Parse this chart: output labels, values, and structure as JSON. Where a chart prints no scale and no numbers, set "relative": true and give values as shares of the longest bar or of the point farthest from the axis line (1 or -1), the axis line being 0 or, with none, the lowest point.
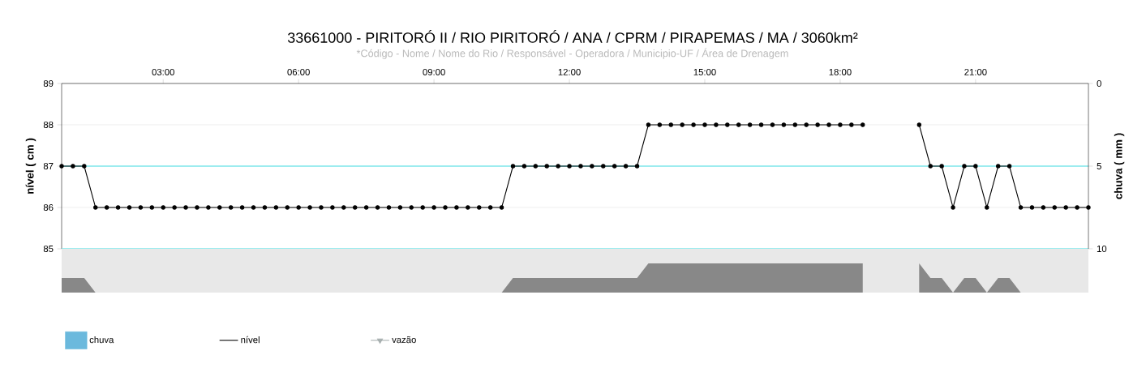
{
  "chart_data": [
    {
      "type": "line",
      "title": "33661000 - PIRITORÓ II / RIO PIRITORÓ / ANA / CPRM / PIRAPEMAS / MA / 3060km²",
      "subtitle": "*Código - Nome / Nome do Rio / Responsável - Operadora / Municipio-UF / Área de Drenagem",
      "ylabel": "nível ( cm )",
      "y2label": "chuva ( mm )",
      "x": [
        0.75,
        1,
        1.25,
        1.5,
        1.75,
        2,
        2.25,
        2.5,
        2.75,
        3,
        3.25,
        3.5,
        3.75,
        4,
        4.25,
        4.5,
        4.75,
        5,
        5.25,
        5.5,
        5.75,
        6,
        6.25,
        6.5,
        6.75,
        7,
        7.25,
        7.5,
        7.75,
        8,
        8.25,
        8.5,
        8.75,
        9,
        9.25,
        9.5,
        9.75,
        10,
        10.25,
        10.5,
        10.75,
        11,
        11.25,
        11.5,
        11.75,
        12,
        12.25,
        12.5,
        12.75,
        13,
        13.25,
        13.5,
        13.75,
        14,
        14.25,
        14.5,
        14.75,
        15,
        15.25,
        15.5,
        15.75,
        16,
        16.25,
        16.5,
        16.75,
        17,
        17.25,
        17.5,
        17.75,
        18,
        18.25,
        18.5,
        18.75,
        19,
        19.25,
        19.5,
        19.75,
        20,
        20.25,
        20.5,
        20.75,
        21,
        21.25,
        21.5,
        21.75,
        22,
        22.25,
        22.5,
        22.75,
        23,
        23.25,
        23.5
      ],
      "series": [
        {
          "name": "chuva",
          "type": "bar",
          "color": "#6bb9dd",
          "values": [
            null,
            null,
            null,
            null,
            null,
            null,
            null,
            null,
            null,
            null,
            null,
            null,
            null,
            null,
            null,
            null,
            null,
            null,
            null,
            null,
            null,
            null,
            null,
            null,
            null,
            null,
            null,
            null,
            null,
            null,
            null,
            null,
            null,
            null,
            null,
            null,
            null,
            null,
            null,
            null,
            null,
            null,
            null,
            null,
            null,
            null,
            null,
            null,
            null,
            null,
            null,
            null,
            null,
            null,
            null,
            null,
            null,
            null,
            null,
            null,
            null,
            null,
            null,
            null,
            null,
            null,
            null,
            null,
            null,
            null,
            null,
            null,
            null,
            null,
            null,
            null,
            null,
            null,
            null,
            null,
            null,
            null,
            null,
            null,
            null,
            null,
            null,
            null,
            null,
            null,
            null,
            null
          ]
        },
        {
          "name": "nível",
          "type": "line",
          "color": "#000000",
          "values": [
            87,
            87,
            87,
            86,
            86,
            86,
            86,
            86,
            86,
            86,
            86,
            86,
            86,
            86,
            86,
            86,
            86,
            86,
            86,
            86,
            86,
            86,
            86,
            86,
            86,
            86,
            86,
            86,
            86,
            86,
            86,
            86,
            86,
            86,
            86,
            86,
            86,
            86,
            86,
            86,
            87,
            87,
            87,
            87,
            87,
            87,
            87,
            87,
            87,
            87,
            87,
            87,
            88,
            88,
            88,
            88,
            88,
            88,
            88,
            88,
            88,
            88,
            88,
            88,
            88,
            88,
            88,
            88,
            88,
            88,
            88,
            88,
            null,
            null,
            null,
            null,
            88,
            87,
            87,
            86,
            87,
            87,
            86,
            87,
            87,
            86,
            86,
            86,
            86,
            86,
            86,
            86
          ]
        },
        {
          "name": "vazão",
          "type": "line",
          "color": "#a8b0b0",
          "marker": "triangle",
          "values": [
            null,
            null,
            null,
            null,
            null,
            null,
            null,
            null,
            null,
            null,
            null,
            null,
            null,
            null,
            null,
            null,
            null,
            null,
            null,
            null,
            null,
            null,
            null,
            null,
            null,
            null,
            null,
            null,
            null,
            null,
            null,
            null,
            null,
            null,
            null,
            null,
            null,
            null,
            null,
            null,
            null,
            null,
            null,
            null,
            null,
            null,
            null,
            null,
            null,
            null,
            null,
            null,
            null,
            null,
            null,
            null,
            null,
            null,
            null,
            null,
            null,
            null,
            null,
            null,
            null,
            null,
            null,
            null,
            null,
            null,
            null,
            null,
            null,
            null,
            null,
            null,
            null,
            null,
            null,
            null,
            null,
            null,
            null,
            null,
            null,
            null,
            null,
            null,
            null,
            null,
            null,
            null
          ]
        }
      ],
      "xlim": [
        0.75,
        23.5
      ],
      "xticks": [
        {
          "value": 3,
          "label": "03:00"
        },
        {
          "value": 6,
          "label": "06:00"
        },
        {
          "value": 9,
          "label": "09:00"
        },
        {
          "value": 12,
          "label": "12:00"
        },
        {
          "value": 15,
          "label": "15:00"
        },
        {
          "value": 18,
          "label": "18:00"
        },
        {
          "value": 21,
          "label": "21:00"
        }
      ],
      "ylim": [
        85,
        89
      ],
      "yticks": [
        85,
        86,
        87,
        88,
        89
      ],
      "y2lim": [
        10,
        0
      ],
      "y2ticks": [
        0,
        5,
        10
      ],
      "ref_lines": [
        {
          "axis": "y",
          "value": 87,
          "color": "#7fe9ec"
        },
        {
          "axis": "y",
          "value": 85,
          "color": "#7fe9ec"
        }
      ],
      "grid": "y",
      "legend": "bottom left",
      "marker": "circle",
      "line_style": "solid"
    },
    {
      "type": "area",
      "relative": true,
      "tick_labels": false,
      "color": "#888888",
      "xlim": [
        0.75,
        23.5
      ],
      "x": [
        0.75,
        1,
        1.25,
        1.5,
        1.75,
        2,
        2.25,
        2.5,
        2.75,
        3,
        3.25,
        3.5,
        3.75,
        4,
        4.25,
        4.5,
        4.75,
        5,
        5.25,
        5.5,
        5.75,
        6,
        6.25,
        6.5,
        6.75,
        7,
        7.25,
        7.5,
        7.75,
        8,
        8.25,
        8.5,
        8.75,
        9,
        9.25,
        9.5,
        9.75,
        10,
        10.25,
        10.5,
        10.75,
        11,
        11.25,
        11.5,
        11.75,
        12,
        12.25,
        12.5,
        12.75,
        13,
        13.25,
        13.5,
        13.75,
        14,
        14.25,
        14.5,
        14.75,
        15,
        15.25,
        15.5,
        15.75,
        16,
        16.25,
        16.5,
        16.75,
        17,
        17.25,
        17.5,
        17.75,
        18,
        18.25,
        18.5,
        18.75,
        19,
        19.25,
        19.5,
        19.75,
        20,
        20.25,
        20.5,
        20.75,
        21,
        21.25,
        21.5,
        21.75,
        22,
        22.25,
        22.5,
        22.75,
        23,
        23.25,
        23.5
      ],
      "values": [
        0.5,
        0.5,
        0.5,
        0,
        0,
        0,
        0,
        0,
        0,
        0,
        0,
        0,
        0,
        0,
        0,
        0,
        0,
        0,
        0,
        0,
        0,
        0,
        0,
        0,
        0,
        0,
        0,
        0,
        0,
        0,
        0,
        0,
        0,
        0,
        0,
        0,
        0,
        0,
        0,
        0,
        0.5,
        0.5,
        0.5,
        0.5,
        0.5,
        0.5,
        0.5,
        0.5,
        0.5,
        0.5,
        0.5,
        0.5,
        1,
        1,
        1,
        1,
        1,
        1,
        1,
        1,
        1,
        1,
        1,
        1,
        1,
        1,
        1,
        1,
        1,
        1,
        1,
        1,
        null,
        null,
        null,
        null,
        1,
        0.5,
        0.5,
        0,
        0.5,
        0.5,
        0,
        0.5,
        0.5,
        0,
        0,
        0,
        0,
        0,
        0,
        0
      ]
    }
  ]
}
